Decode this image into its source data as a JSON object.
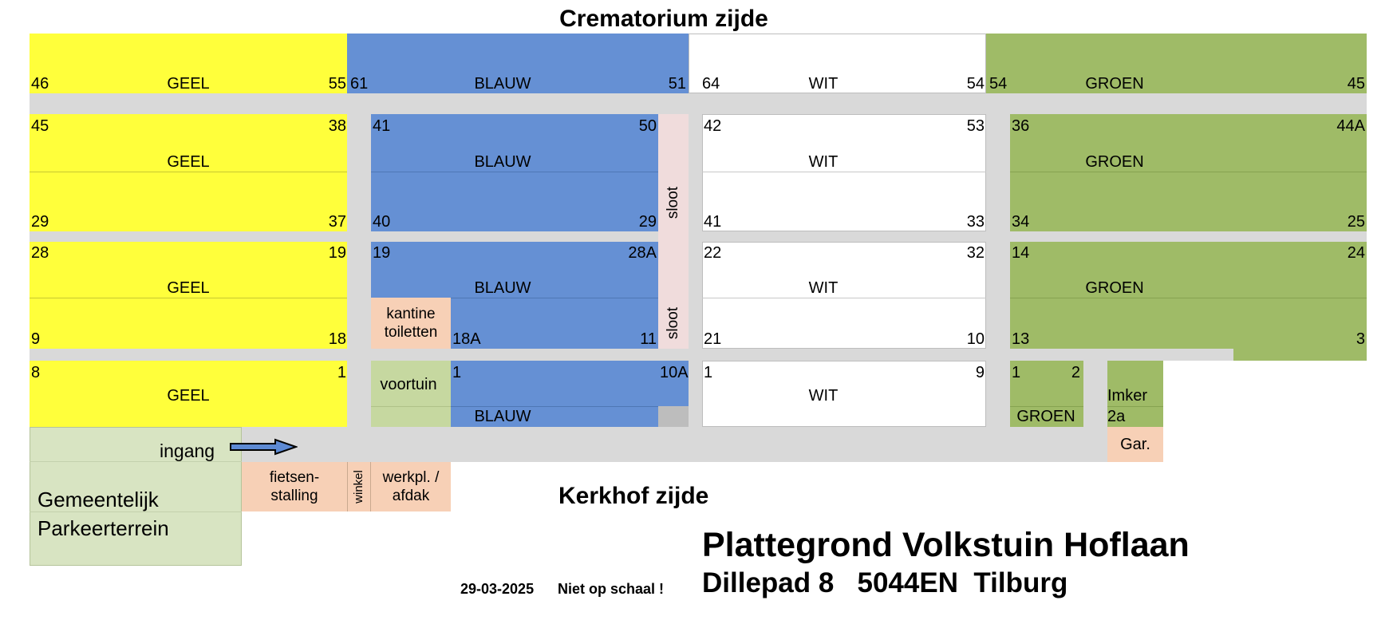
{
  "headings": {
    "top": "Crematorium zijde",
    "bottom": "Kerkhof zijde"
  },
  "title": {
    "main": "Plattegrond Volkstuin Hoflaan",
    "address": "Dillepad 8   5044EN  Tilburg",
    "date": "29-03-2025",
    "note": "Niet op schaal !"
  },
  "colors": {
    "yellow": "#ffff3b",
    "blue": "#6590d4",
    "white": "#ffffff",
    "green": "#9fbb67",
    "path": "#d9d9d9",
    "facility": "#f7d0b6",
    "ditch": "#f0dcdc",
    "parking": "#d8e4c2"
  },
  "row1": {
    "geel": {
      "left": "46",
      "name": "GEEL",
      "right": "55"
    },
    "blauw": {
      "left": "61",
      "name": "BLAUW",
      "right": "51"
    },
    "wit": {
      "left": "64",
      "name": "WIT",
      "right": "54"
    },
    "groen": {
      "left": "54",
      "name": "GROEN",
      "right": "45"
    }
  },
  "row2": {
    "geel": {
      "tl": "45",
      "tr": "38",
      "name": "GEEL",
      "bl": "29",
      "br": "37"
    },
    "blauw": {
      "tl": "41",
      "tr": "50",
      "name": "BLAUW",
      "bl": "40",
      "br": "29"
    },
    "wit": {
      "tl": "42",
      "tr": "53",
      "name": "WIT",
      "bl": "41",
      "br": "33"
    },
    "groen": {
      "tl": "36",
      "tr": "44A",
      "name": "GROEN",
      "bl": "34",
      "br": "25"
    }
  },
  "row3": {
    "geel": {
      "tl": "28",
      "tr": "19",
      "name": "GEEL",
      "bl": "9",
      "br": "18"
    },
    "blauw": {
      "tl": "19",
      "tr": "28A",
      "name": "BLAUW",
      "bl": "18A",
      "br": "11"
    },
    "wit": {
      "tl": "22",
      "tr": "32",
      "name": "WIT",
      "bl": "21",
      "br": "10"
    },
    "groen": {
      "tl": "14",
      "tr": "24",
      "name": "GROEN",
      "bl": "13",
      "br": "3"
    }
  },
  "row4": {
    "geel": {
      "tl": "8",
      "tr": "1",
      "name": "GEEL"
    },
    "blauw": {
      "tl": "1",
      "tr": "10A",
      "name": "BLAUW"
    },
    "wit": {
      "tl": "1",
      "tr": "9",
      "name": "WIT"
    },
    "groen": {
      "tl": "1",
      "tr": "2",
      "name": "GROEN"
    },
    "imker": {
      "line1": "Imker",
      "line2": "2a"
    }
  },
  "facilities": {
    "ditch": "sloot",
    "kantine": "kantine toiletten",
    "voortuin": "voortuin",
    "ingang": "ingang",
    "parking": "Gemeentelijk Parkeerterrein",
    "fietsenstalling": "fietsen-\nstalling",
    "winkel": "winkel",
    "werkplaats": "werkpl. /\nafdak",
    "garage": "Gar."
  }
}
